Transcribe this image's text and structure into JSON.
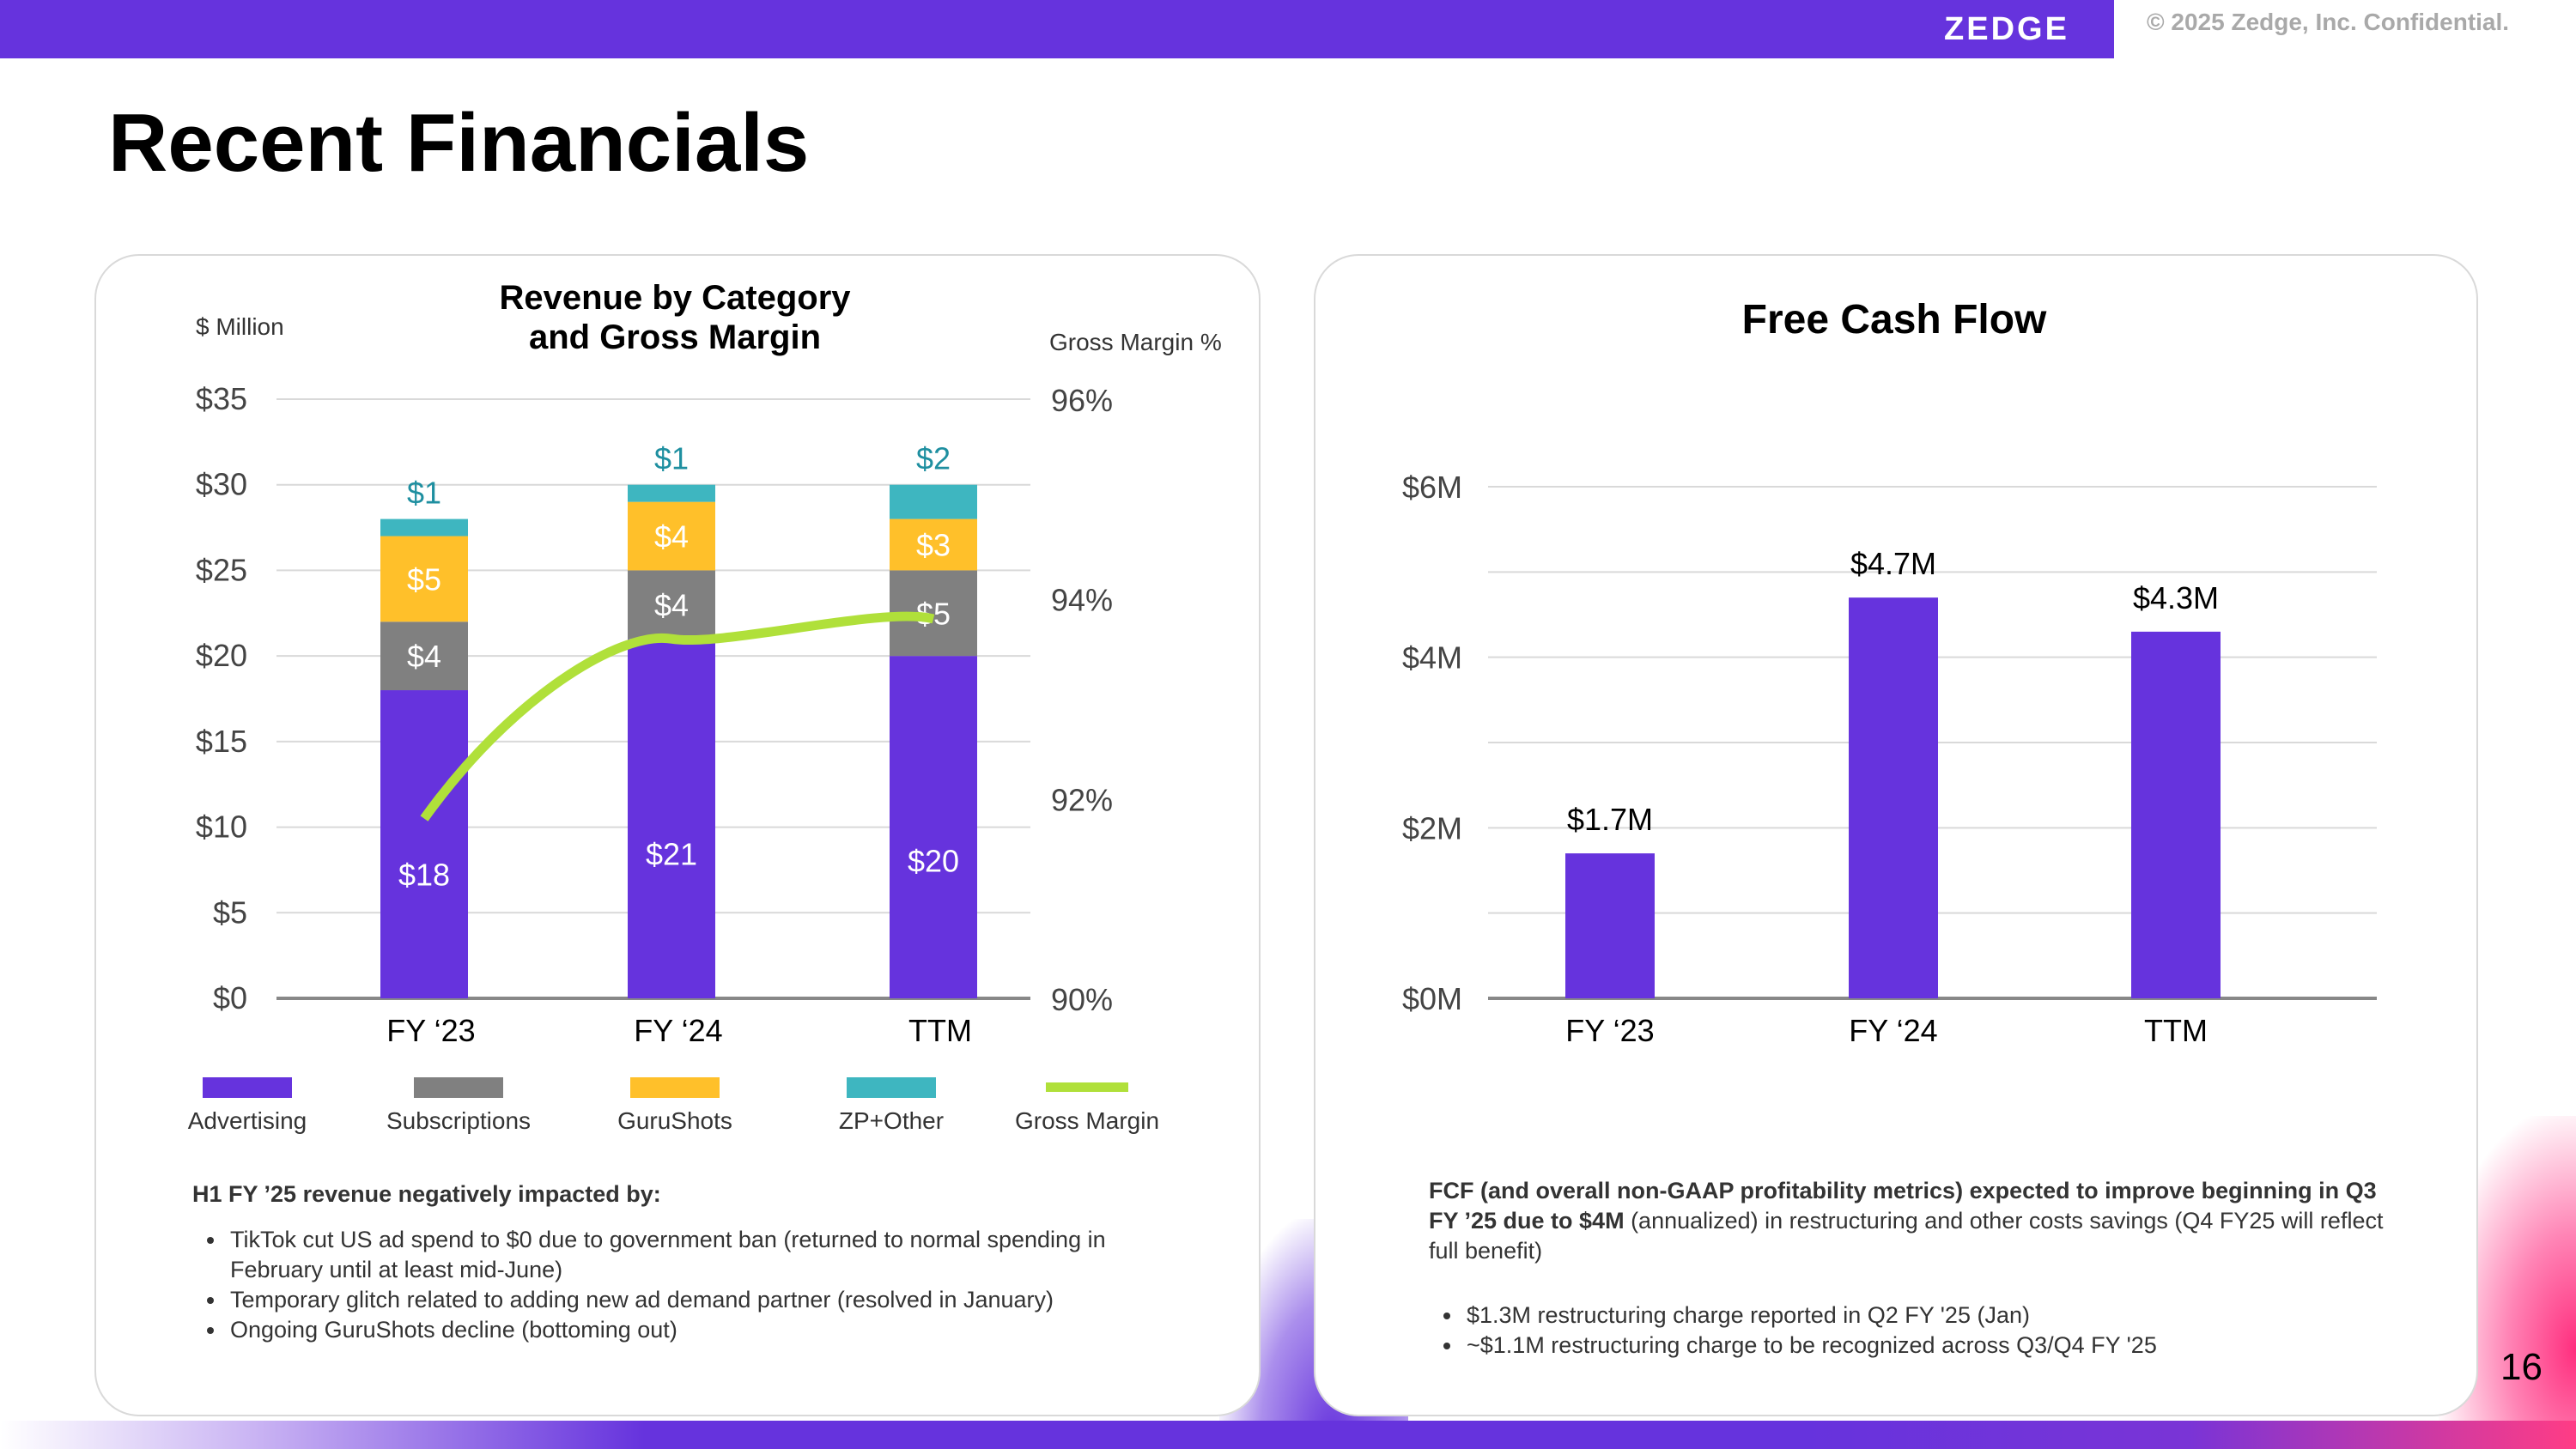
{
  "header": {
    "brand": "ZEDGE",
    "confidential": "© 2025 Zedge, Inc. Confidential.",
    "title": "Recent Financials",
    "page_number": "16"
  },
  "colors": {
    "advertising": "#6633dd",
    "subscriptions": "#808080",
    "gurushots": "#ffc02a",
    "zp_other": "#3eb6c0",
    "gross_margin": "#b0e03a",
    "fcf_bar": "#6633dd"
  },
  "chart_data": [
    {
      "type": "bar",
      "stacked": true,
      "title": "Revenue by Category and Gross Margin",
      "title_lines": [
        "Revenue by Category",
        "and Gross Margin"
      ],
      "ylabel": "$ Million",
      "y2label": "Gross Margin %",
      "ylim": [
        0,
        35
      ],
      "yticks": [
        "$0",
        "$5",
        "$10",
        "$15",
        "$20",
        "$25",
        "$30",
        "$35"
      ],
      "y2lim": [
        90,
        96
      ],
      "y2ticks": [
        "90%",
        "92%",
        "94%",
        "96%"
      ],
      "categories": [
        "FY ‘23",
        "FY ‘24",
        "TTM"
      ],
      "series": [
        {
          "name": "Advertising",
          "values": [
            18,
            21,
            20
          ],
          "labels": [
            "$18",
            "$21",
            "$20"
          ]
        },
        {
          "name": "Subscriptions",
          "values": [
            4,
            4,
            5
          ],
          "labels": [
            "$4",
            "$4",
            "$5"
          ]
        },
        {
          "name": "GuruShots",
          "values": [
            5,
            4,
            3
          ],
          "labels": [
            "$5",
            "$4",
            "$3"
          ]
        },
        {
          "name": "ZP+Other",
          "values": [
            1,
            1,
            2
          ],
          "labels": [
            "$1",
            "$1",
            "$2"
          ]
        }
      ],
      "line": {
        "name": "Gross Margin",
        "axis": "secondary",
        "values": [
          91.8,
          93.6,
          93.8
        ]
      },
      "legend": [
        "Advertising",
        "Subscriptions",
        "GuruShots",
        "ZP+Other",
        "Gross Margin"
      ]
    },
    {
      "type": "bar",
      "title": "Free Cash Flow",
      "ylim": [
        0,
        6
      ],
      "yticks": [
        "$0M",
        "$2M",
        "$4M",
        "$6M"
      ],
      "categories": [
        "FY ‘23",
        "FY ‘24",
        "TTM"
      ],
      "values": [
        1.7,
        4.7,
        4.3
      ],
      "labels": [
        "$1.7M",
        "$4.7M",
        "$4.3M"
      ]
    }
  ],
  "left_note": {
    "heading": "H1 FY ’25 revenue negatively impacted by:",
    "bullets": [
      "TikTok cut US ad spend to $0 due to government ban (returned to normal spending in February until at least mid-June)",
      "Temporary glitch related to adding new ad demand partner (resolved in January)",
      "Ongoing GuruShots decline (bottoming out)"
    ]
  },
  "right_note": {
    "bold_text": "FCF (and overall non-GAAP profitability metrics) expected to improve beginning in Q3 FY ’25 due to $4M",
    "normal_text": " (annualized) in restructuring and other costs savings (Q4 FY25 will reflect full benefit)",
    "bullets": [
      "$1.3M restructuring charge reported in Q2 FY '25 (Jan)",
      "~$1.1M restructuring charge to be recognized across Q3/Q4 FY '25"
    ]
  }
}
